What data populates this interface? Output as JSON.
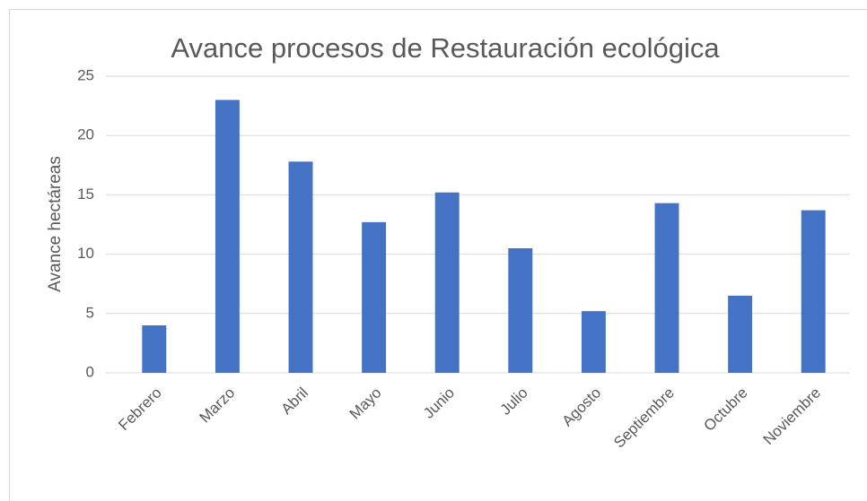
{
  "chart_data": {
    "type": "bar",
    "title": "Avance procesos de Restauración ecológica",
    "y_label": "Avance hectáreas",
    "categories": [
      "Febrero",
      "Marzo",
      "Abril",
      "Mayo",
      "Junio",
      "Julio",
      "Agosto",
      "Septiembre",
      "Octubre",
      "Noviembre"
    ],
    "values": [
      4,
      23,
      17.8,
      12.7,
      15.2,
      10.5,
      5.2,
      14.3,
      6.5,
      13.7
    ],
    "color": "#4472c4",
    "ylim": [
      0,
      25
    ],
    "yticks": [
      0,
      5,
      10,
      15,
      20,
      25
    ],
    "grid": true
  }
}
